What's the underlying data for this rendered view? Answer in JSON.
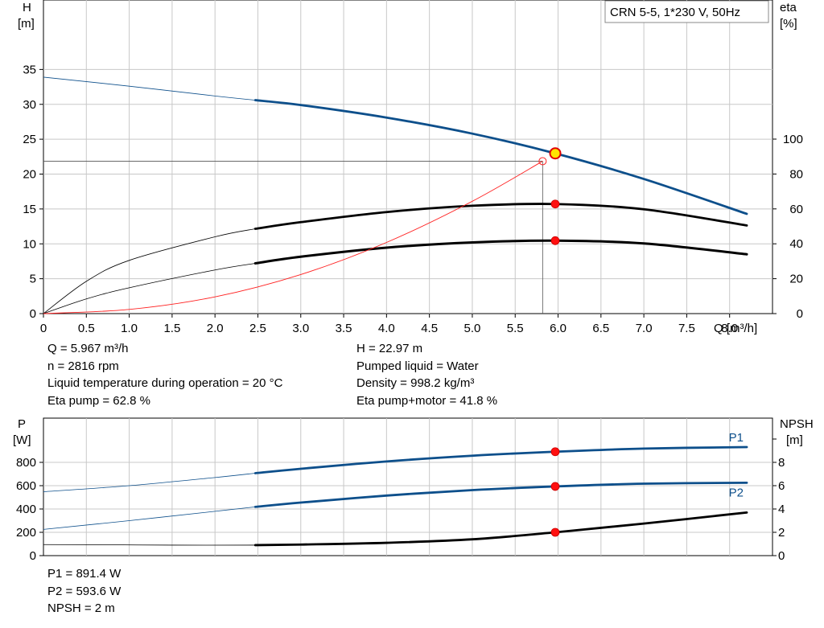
{
  "chart_data": [
    {
      "type": "line",
      "title": "CRN 5-5, 1*230 V, 50Hz",
      "xlabel": "Q [m³/h]",
      "ylabel_left": [
        "H",
        "[m]"
      ],
      "ylabel_right": [
        "eta",
        "[%]"
      ],
      "xlim": [
        0,
        8.5
      ],
      "ylim_left": [
        0,
        40
      ],
      "ylim_right": [
        0,
        100
      ],
      "x_ticks": [
        "0",
        "0.5",
        "1.0",
        "1.5",
        "2.0",
        "2.5",
        "3.0",
        "3.5",
        "4.0",
        "4.5",
        "5.0",
        "5.5",
        "6.0",
        "6.5",
        "7.0",
        "7.5",
        "8.0"
      ],
      "y_ticks_left": [
        "0",
        "5",
        "10",
        "15",
        "20",
        "25",
        "30",
        "35"
      ],
      "y_ticks_right": [
        "0",
        "20",
        "40",
        "60",
        "80",
        "100"
      ],
      "grid": true,
      "series": [
        {
          "color": "#0d4f8b",
          "axis": "left",
          "x": [
            0,
            1,
            2,
            2.47,
            3,
            4,
            5,
            5.967,
            7,
            8.2
          ],
          "y": [
            33.9,
            32.6,
            31.2,
            30.6,
            29.9,
            28.1,
            25.8,
            22.97,
            19.3,
            14.3
          ]
        },
        {
          "color": "#000000",
          "axis": "right",
          "x": [
            0,
            0.5,
            1,
            2,
            2.47,
            3,
            4,
            5,
            5.967,
            7,
            8.2
          ],
          "y": [
            0,
            18.5,
            30.5,
            44,
            48.6,
            52.4,
            58.2,
            61.8,
            62.8,
            59.8,
            50.5
          ]
        },
        {
          "color": "#000000",
          "axis": "right",
          "x": [
            0,
            0.5,
            1,
            2,
            2.47,
            3,
            4,
            5,
            5.967,
            7,
            8.2
          ],
          "y": [
            0,
            8.4,
            14.8,
            25,
            28.8,
            32.6,
            37.8,
            40.8,
            41.8,
            40.2,
            34
          ]
        },
        {
          "color": "#ff2020",
          "axis": "left",
          "x": [
            0,
            1,
            2,
            3,
            4,
            5,
            5.82
          ],
          "y": [
            0,
            0.6,
            2.4,
            5.6,
            10.2,
            16.1,
            21.85
          ]
        }
      ],
      "operating_point": {
        "x": 5.967,
        "y": 22.97
      },
      "duty_point": {
        "x": 5.82,
        "y": 21.85
      },
      "markers": [
        {
          "x": 5.967,
          "y": 62.8,
          "axis": "right"
        },
        {
          "x": 5.967,
          "y": 41.8,
          "axis": "right"
        }
      ]
    },
    {
      "type": "line",
      "ylabel_left": [
        "P",
        "[W]"
      ],
      "ylabel_right": [
        "NPSH",
        "[m]"
      ],
      "xlim": [
        0,
        8.5
      ],
      "ylim_left": [
        0,
        1000
      ],
      "ylim_right": [
        0,
        10
      ],
      "y_ticks_left": [
        "0",
        "200",
        "400",
        "600",
        "800"
      ],
      "y_ticks_right": [
        "0",
        "2",
        "4",
        "6",
        "8"
      ],
      "grid": true,
      "series": [
        {
          "name": "P1",
          "color": "#0d4f8b",
          "axis": "left",
          "x": [
            0,
            1,
            2,
            2.47,
            3,
            4,
            5,
            5.967,
            7,
            8.2
          ],
          "y": [
            548,
            600,
            670,
            707,
            745,
            808,
            857,
            891.4,
            918,
            931
          ]
        },
        {
          "name": "P2",
          "color": "#0d4f8b",
          "axis": "left",
          "x": [
            0,
            1,
            2,
            2.47,
            3,
            4,
            5,
            5.967,
            7,
            8.2
          ],
          "y": [
            225,
            300,
            380,
            418,
            455,
            515,
            562,
            593.6,
            617,
            625
          ]
        },
        {
          "color": "#000000",
          "axis": "right",
          "x": [
            0,
            0.8,
            1.5,
            2.47,
            3,
            4,
            5,
            5.967,
            7,
            8.2
          ],
          "y": [
            0.95,
            0.93,
            0.9,
            0.9,
            0.95,
            1.1,
            1.4,
            2.0,
            2.75,
            3.7
          ]
        }
      ],
      "markers": [
        {
          "x": 5.967,
          "y": 891.4,
          "axis": "left"
        },
        {
          "x": 5.967,
          "y": 593.6,
          "axis": "left"
        },
        {
          "x": 5.967,
          "y": 2.0,
          "axis": "right"
        }
      ]
    }
  ],
  "info_top": {
    "left": [
      "Q = 5.967 m³/h",
      "n = 2816 rpm",
      "Liquid temperature during operation = 20 °C",
      "Eta pump = 62.8 %"
    ],
    "right": [
      "H = 22.97 m",
      "Pumped liquid = Water",
      "Density = 998.2 kg/m³",
      "Eta pump+motor = 41.8 %"
    ]
  },
  "info_bottom": [
    "P1 = 891.4 W",
    "P2 = 593.6 W",
    "NPSH = 2 m"
  ]
}
